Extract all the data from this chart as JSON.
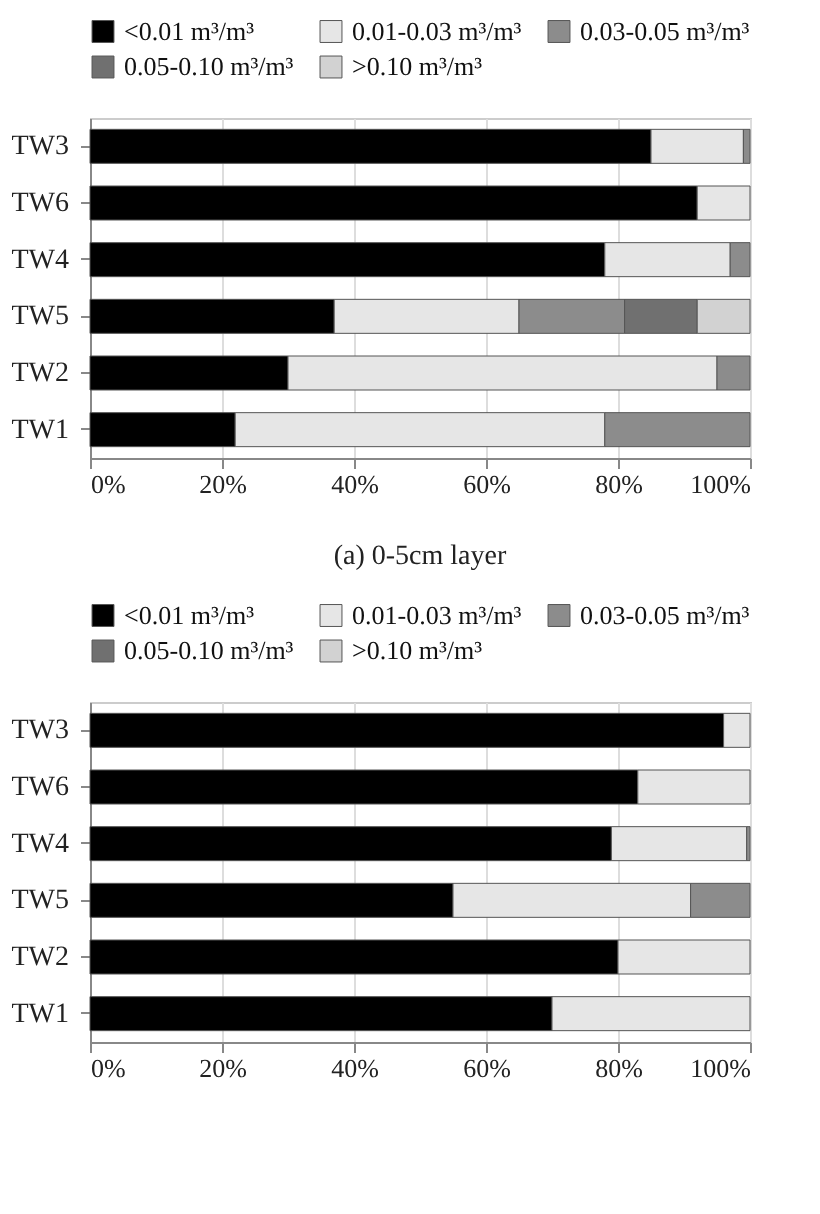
{
  "chart_data": [
    {
      "type": "bar",
      "orientation": "horizontal",
      "stacked": true,
      "categories": [
        "TW3",
        "TW6",
        "TW4",
        "TW5",
        "TW2",
        "TW1"
      ],
      "series": [
        {
          "name": "<0.01 m³/m³",
          "color": "#000000",
          "values": [
            85,
            92,
            78,
            37,
            30,
            22
          ]
        },
        {
          "name": "0.01-0.03 m³/m³",
          "color": "#e6e6e6",
          "values": [
            14,
            8,
            19,
            28,
            65,
            56
          ]
        },
        {
          "name": "0.03-0.05 m³/m³",
          "color": "#8c8c8c",
          "values": [
            1,
            null,
            3,
            16,
            5,
            22
          ]
        },
        {
          "name": "0.05-0.10 m³/m³",
          "color": "#707070",
          "values": [
            null,
            null,
            null,
            11,
            null,
            null
          ]
        },
        {
          "name": ">0.10 m³/m³",
          "color": "#d2d2d2",
          "values": [
            null,
            null,
            null,
            8,
            null,
            null
          ]
        }
      ],
      "xlim": [
        0,
        100
      ],
      "xticks": [
        {
          "value": 0,
          "label": "0%"
        },
        {
          "value": 20,
          "label": "20%"
        },
        {
          "value": 40,
          "label": "40%"
        },
        {
          "value": 60,
          "label": "60%"
        },
        {
          "value": 80,
          "label": "80%"
        },
        {
          "value": 100,
          "label": "100%"
        }
      ],
      "grid": "x",
      "legend": "top",
      "annotations": [
        "(a) 0-5cm layer"
      ]
    },
    {
      "type": "bar",
      "orientation": "horizontal",
      "stacked": true,
      "categories": [
        "TW3",
        "TW6",
        "TW4",
        "TW5",
        "TW2",
        "TW1"
      ],
      "series": [
        {
          "name": "<0.01 m³/m³",
          "color": "#000000",
          "values": [
            96,
            83,
            79,
            55,
            80,
            70
          ]
        },
        {
          "name": "0.01-0.03 m³/m³",
          "color": "#e6e6e6",
          "values": [
            4,
            17,
            20.5,
            36,
            20,
            30
          ]
        },
        {
          "name": "0.03-0.05 m³/m³",
          "color": "#8c8c8c",
          "values": [
            null,
            null,
            0.5,
            9,
            null,
            null
          ]
        },
        {
          "name": "0.05-0.10 m³/m³",
          "color": "#707070",
          "values": [
            null,
            null,
            null,
            null,
            null,
            null
          ]
        },
        {
          "name": ">0.10 m³/m³",
          "color": "#d2d2d2",
          "values": [
            null,
            null,
            null,
            null,
            null,
            null
          ]
        }
      ],
      "xlim": [
        0,
        100
      ],
      "xticks": [
        {
          "value": 0,
          "label": "0%"
        },
        {
          "value": 20,
          "label": "20%"
        },
        {
          "value": 40,
          "label": "40%"
        },
        {
          "value": 60,
          "label": "60%"
        },
        {
          "value": 80,
          "label": "80%"
        },
        {
          "value": 100,
          "label": "100%"
        }
      ],
      "grid": "x",
      "legend": "top"
    }
  ]
}
